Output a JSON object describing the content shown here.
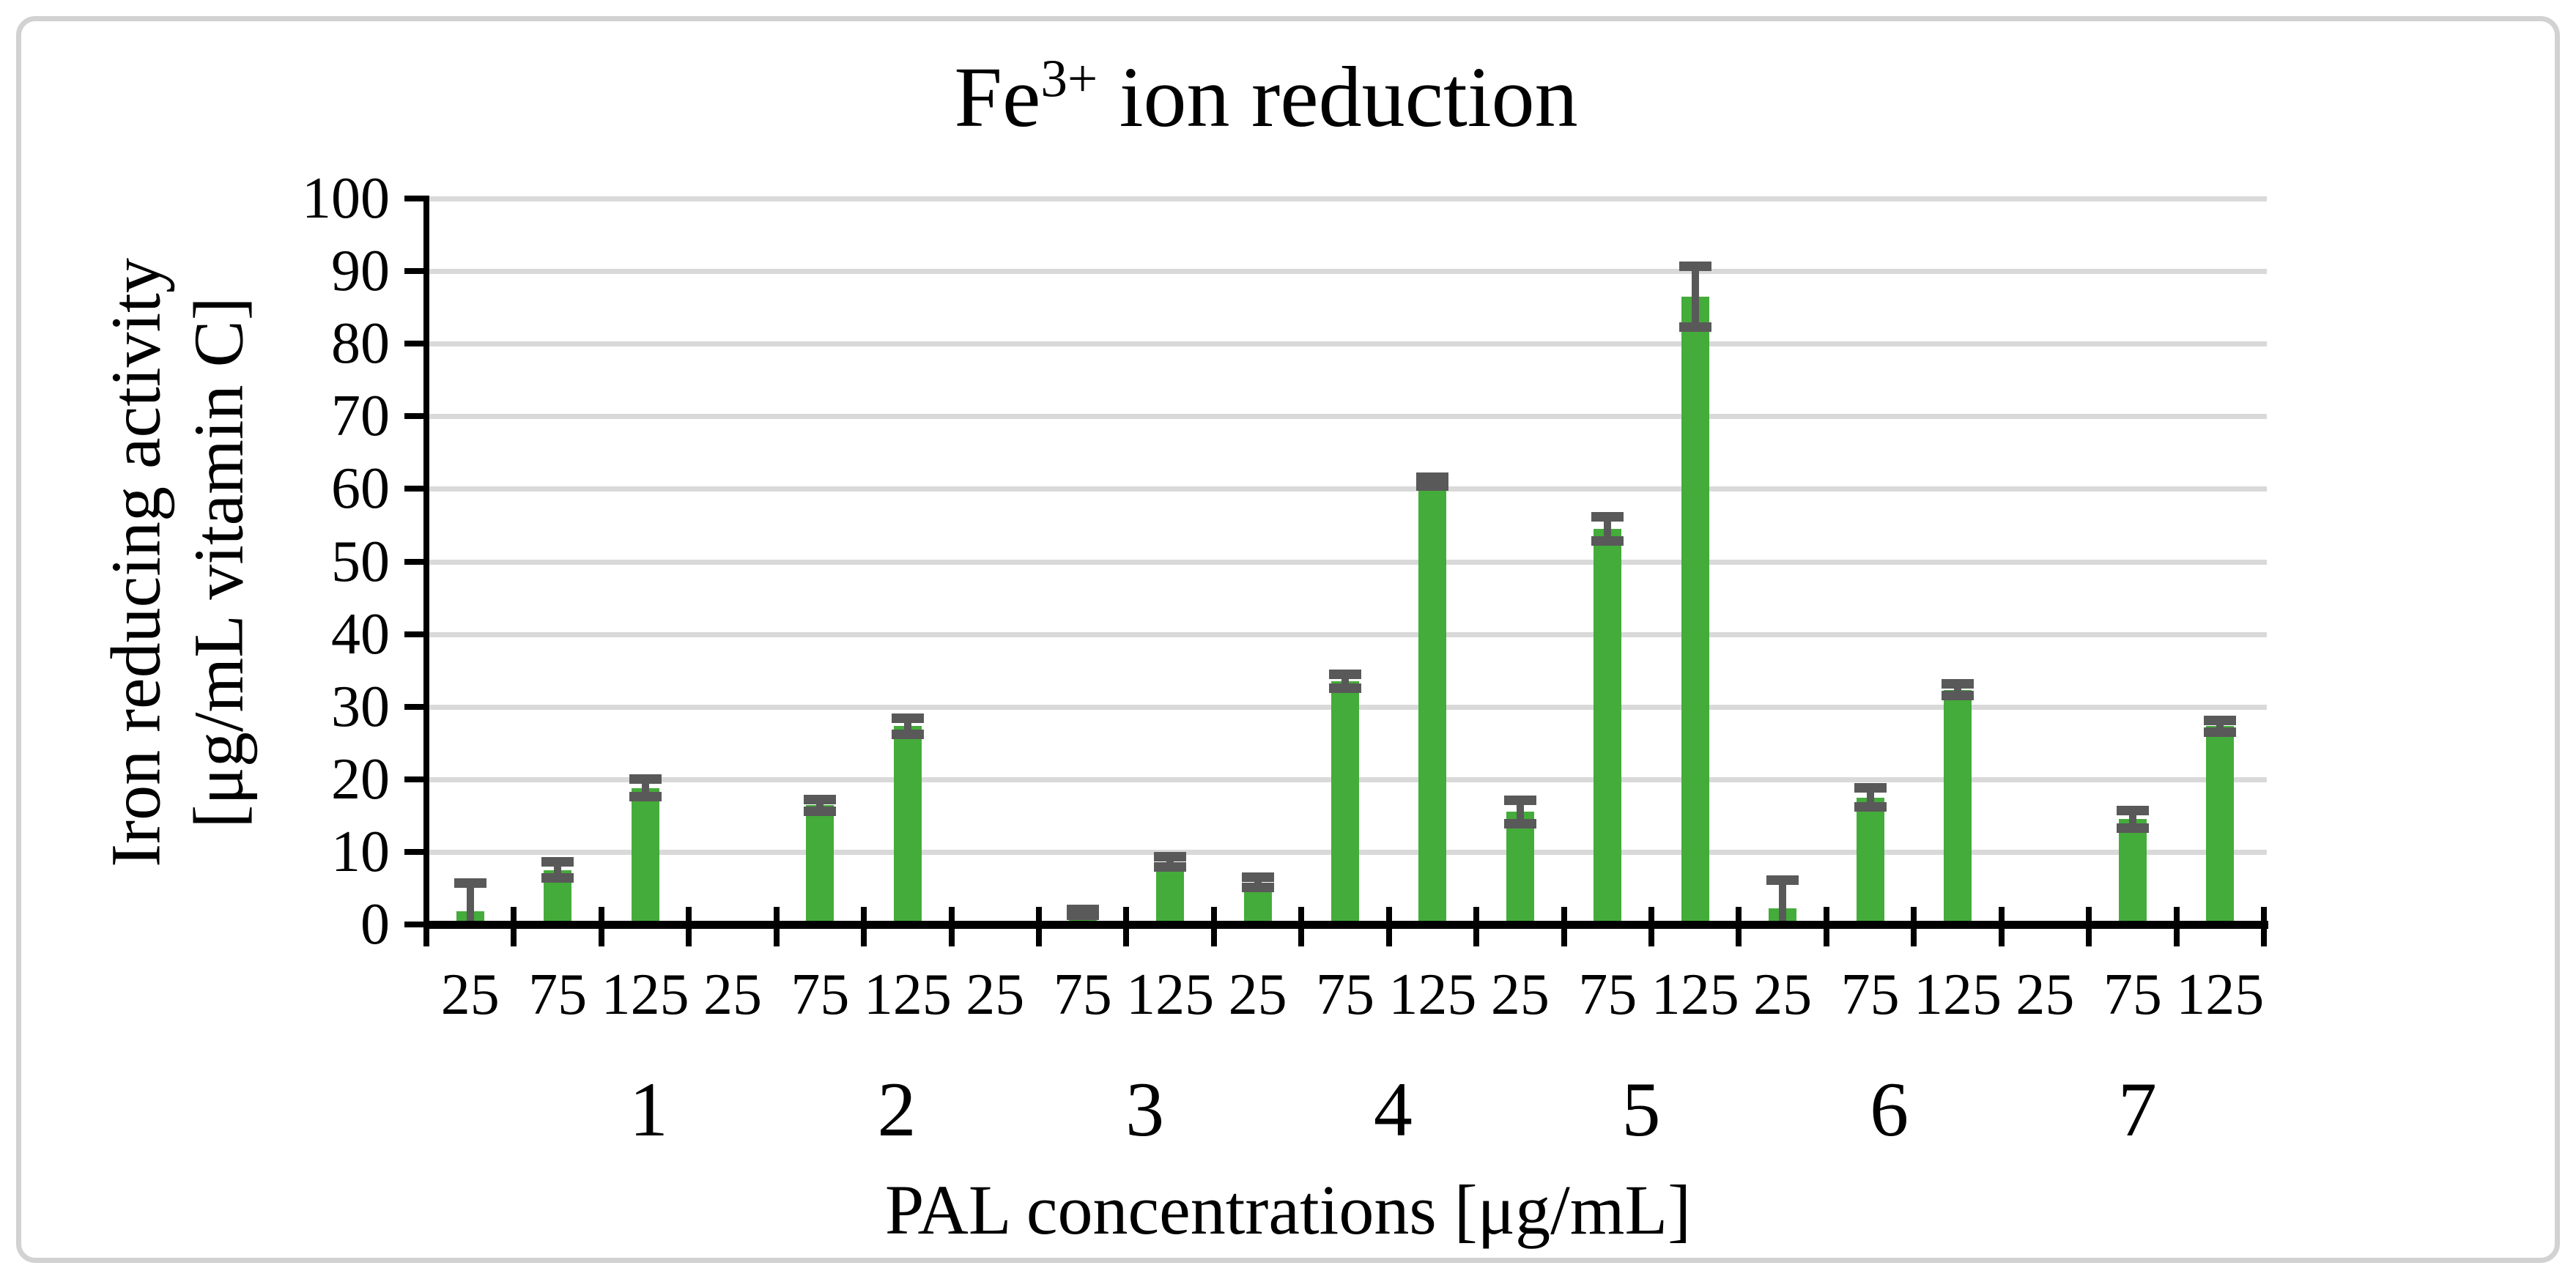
{
  "figure": {
    "border_color": "#d2d2d2",
    "background": "#ffffff"
  },
  "chart_data": {
    "type": "bar",
    "title": "Fe³⁺ ion reduction",
    "title_base": "Fe",
    "title_sup": "3+",
    "title_rest": " ion reduction",
    "xlabel": "PAL concentrations [μg/mL]",
    "ylabel": "Iron reducing activity [μg/mL vitamin C]",
    "ylabel_line1": "Iron reducing activity",
    "ylabel_line2": "[μg/mL vitamin C]",
    "ylim": [
      0,
      100
    ],
    "ytick_step": 10,
    "y_ticks": [
      0,
      10,
      20,
      30,
      40,
      50,
      60,
      70,
      80,
      90,
      100
    ],
    "grid": true,
    "legend": "none",
    "bar_color": "#44ac3a",
    "error_color": "#595959",
    "gridline_color": "#d9d9d9",
    "concentration_labels": [
      "25",
      "75",
      "125"
    ],
    "groups": [
      {
        "label": "1",
        "bars": [
          {
            "x": "25",
            "value": 1.8,
            "error": 3.9
          },
          {
            "x": "75",
            "value": 7.5,
            "error": 1.1
          },
          {
            "x": "125",
            "value": 18.8,
            "error": 1.2
          }
        ]
      },
      {
        "label": "2",
        "bars": [
          {
            "x": "25",
            "value": 0,
            "error": 0
          },
          {
            "x": "75",
            "value": 16.4,
            "error": 0.8
          },
          {
            "x": "125",
            "value": 27.3,
            "error": 1.1
          }
        ]
      },
      {
        "label": "3",
        "bars": [
          {
            "x": "25",
            "value": 0,
            "error": 0
          },
          {
            "x": "75",
            "value": 1.7,
            "error": 0.4
          },
          {
            "x": "125",
            "value": 8.6,
            "error": 0.7
          }
        ]
      },
      {
        "label": "4",
        "bars": [
          {
            "x": "25",
            "value": 5.8,
            "error": 0.7
          },
          {
            "x": "75",
            "value": 33.5,
            "error": 1.0
          },
          {
            "x": "125",
            "value": 61.0,
            "error": 0.6
          }
        ]
      },
      {
        "label": "5",
        "bars": [
          {
            "x": "25",
            "value": 15.5,
            "error": 1.6
          },
          {
            "x": "75",
            "value": 54.5,
            "error": 1.7
          },
          {
            "x": "125",
            "value": 86.5,
            "error": 4.2
          }
        ]
      },
      {
        "label": "6",
        "bars": [
          {
            "x": "25",
            "value": 2.2,
            "error": 3.9
          },
          {
            "x": "75",
            "value": 17.5,
            "error": 1.3
          },
          {
            "x": "125",
            "value": 32.3,
            "error": 0.8
          }
        ]
      },
      {
        "label": "7",
        "bars": [
          {
            "x": "25",
            "value": 0,
            "error": 0
          },
          {
            "x": "75",
            "value": 14.5,
            "error": 1.2
          },
          {
            "x": "125",
            "value": 27.3,
            "error": 0.8
          }
        ]
      }
    ]
  }
}
